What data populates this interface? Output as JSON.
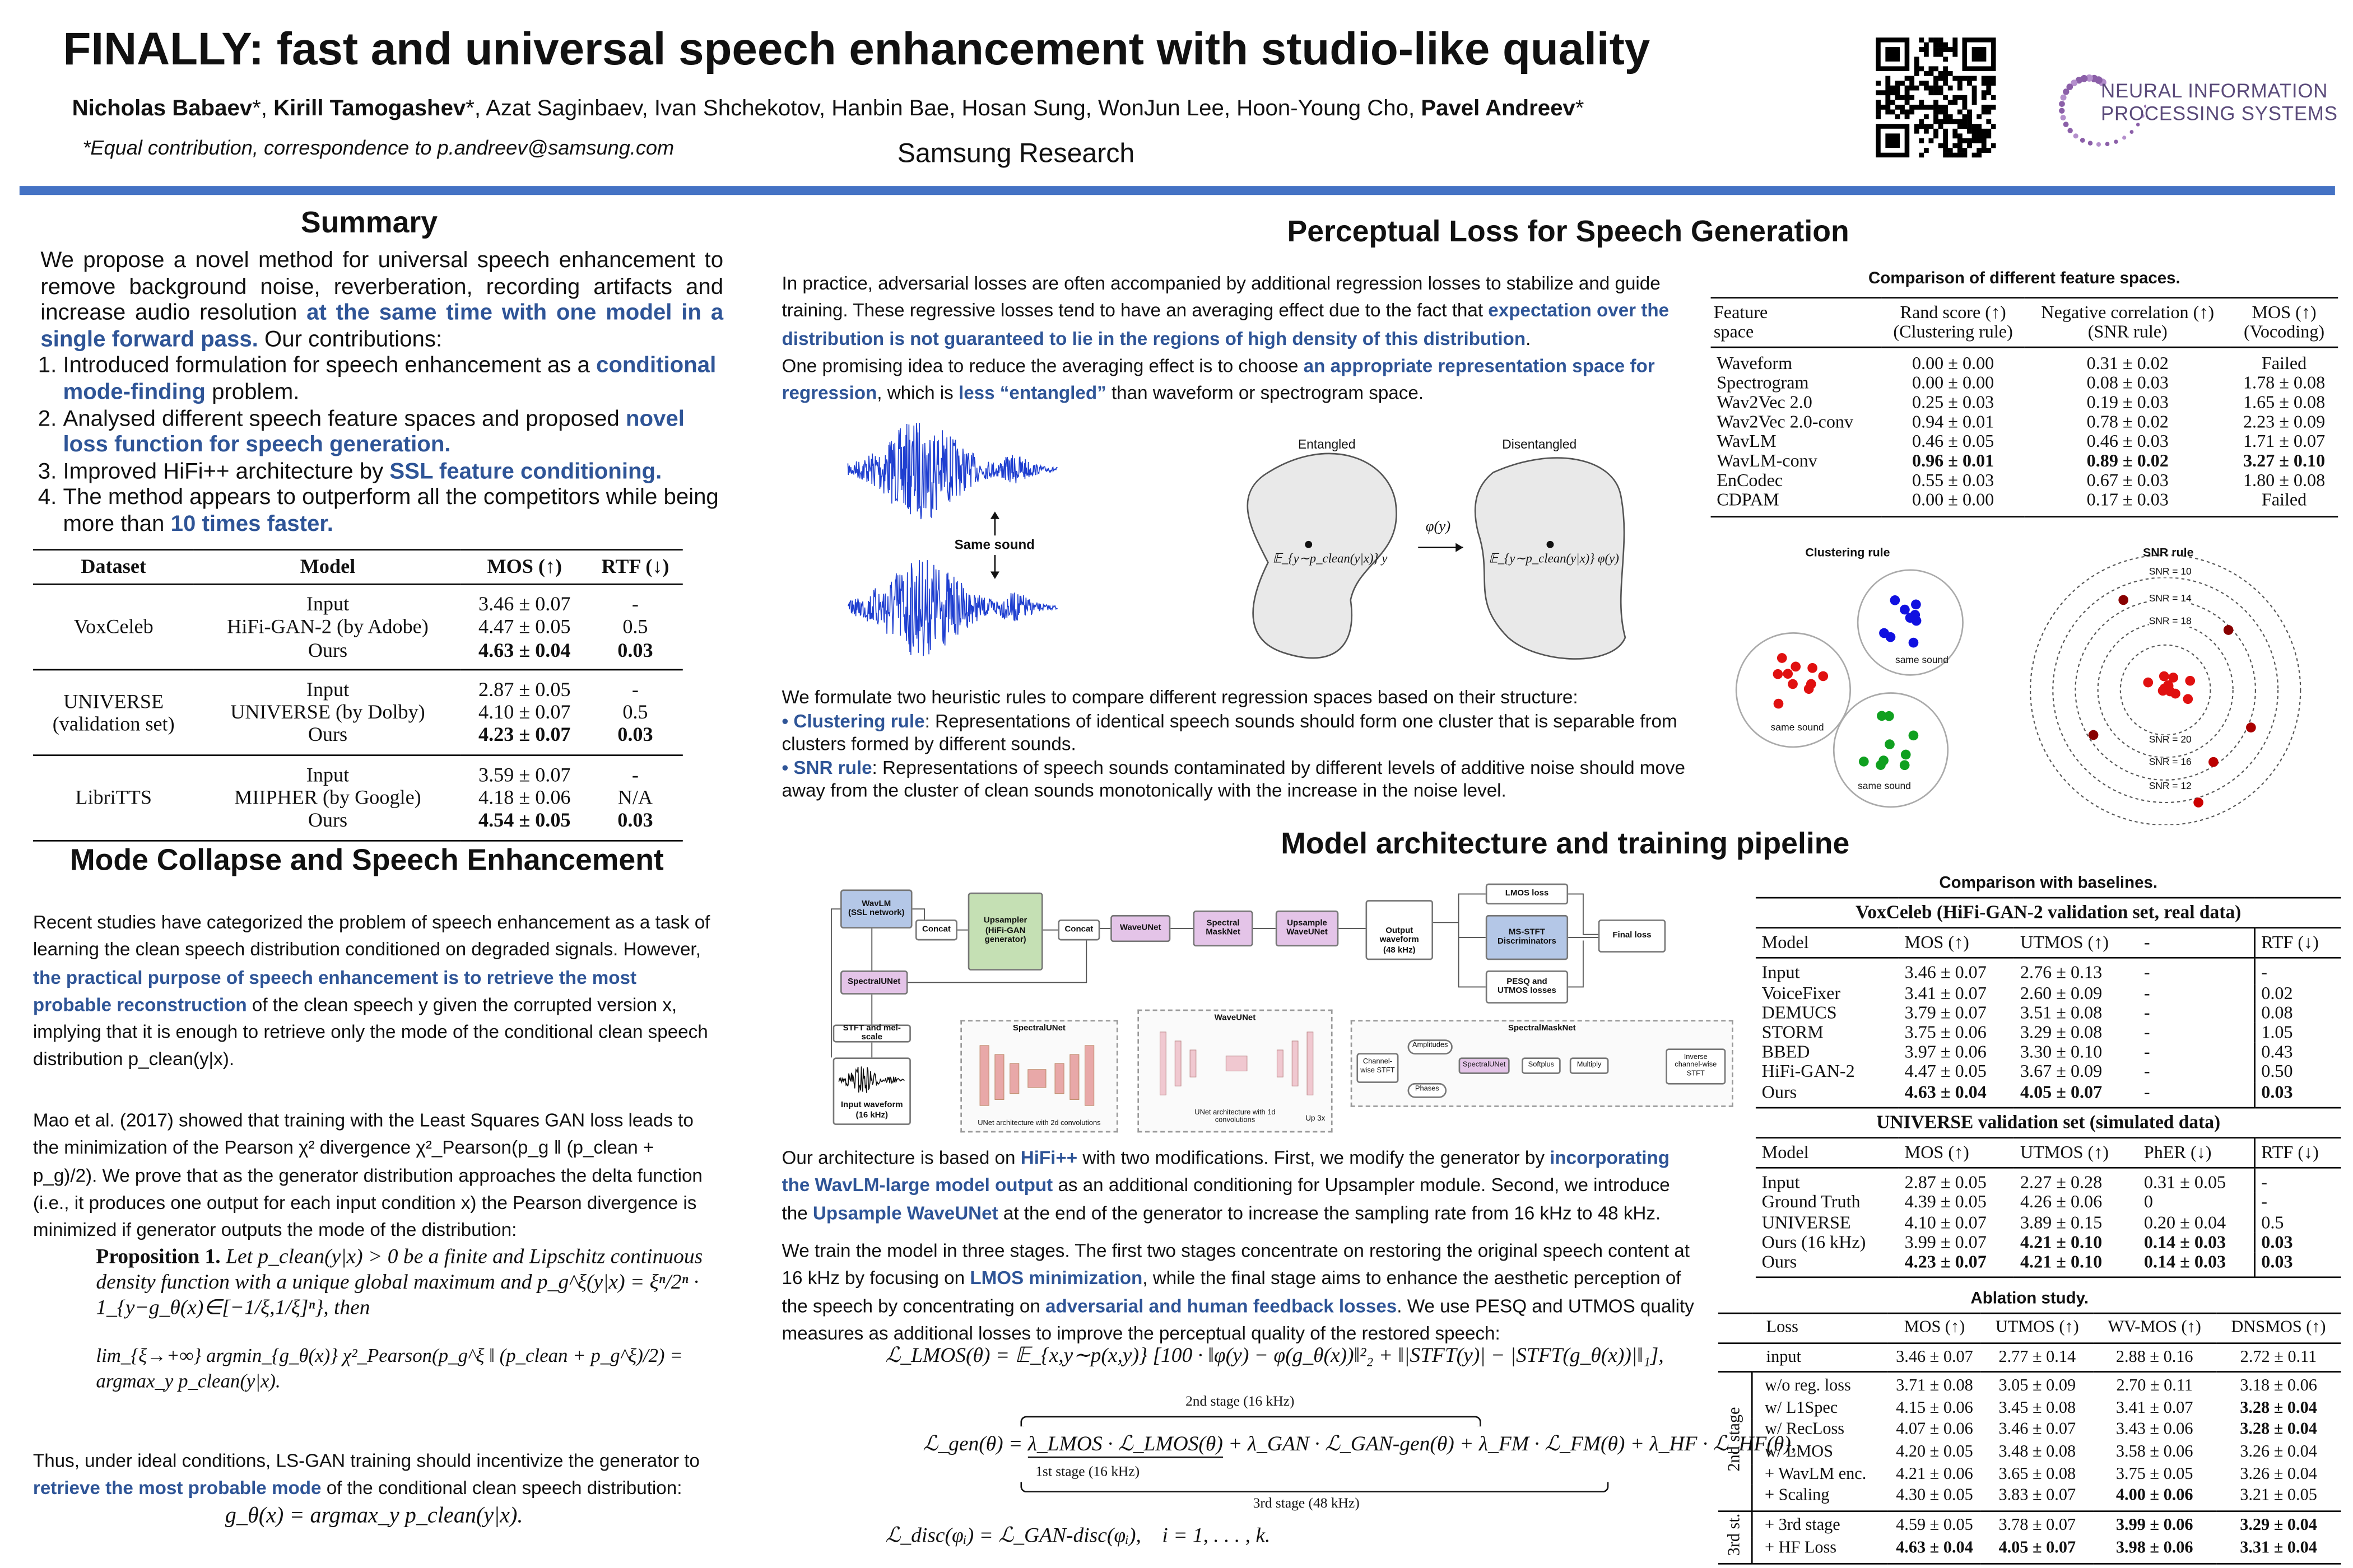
{
  "header": {
    "title": "FINALLY: fast and universal speech enhancement with studio-like quality",
    "authors": [
      {
        "emph": "Nicholas Babaev"
      },
      "*, ",
      {
        "emph": "Kirill Tamogashev"
      },
      "*, Azat Saginbaev, Ivan Shchekotov, Hanbin Bae, Hosan Sung, WonJun Lee, Hoon-Young Cho, ",
      {
        "emph": "Pavel Andreev"
      },
      "*"
    ],
    "note": "*Equal contribution, correspondence to p.andreev@samsung.com",
    "affiliation": "Samsung Research",
    "logo_text": [
      "NEURAL INFORMATION",
      "PROCESSING SYSTEMS"
    ]
  },
  "summary": {
    "title": "Summary",
    "intro": [
      "We propose a novel method for universal speech enhancement to remove background noise, reverberation, recording artifacts and increase audio resolution ",
      {
        "emph": "at the same time with one model in a single forward pass."
      },
      "  Our contributions:"
    ],
    "contributions": [
      [
        "Introduced formulation for speech enhancement as a ",
        {
          "emph": "conditional mode-finding"
        },
        " problem."
      ],
      [
        "Analysed different speech feature spaces and proposed ",
        {
          "emph": "novel loss function for speech generation."
        }
      ],
      [
        "Improved HiFi++ architecture by ",
        {
          "emph": "SSL feature conditioning."
        }
      ],
      [
        "The method appears to outperform all the competitors while being more than ",
        {
          "emph": "10 times faster."
        }
      ]
    ],
    "table": {
      "header": [
        "Dataset",
        "Model",
        "MOS (↑)",
        "RTF (↓)"
      ],
      "groups": [
        {
          "dataset": "VoxCeleb",
          "rows": [
            [
              "Input",
              "3.46 ± 0.07",
              "-"
            ],
            [
              "HiFi-GAN-2 (by Adobe)",
              "4.47 ± 0.05",
              "0.5"
            ],
            [
              "Ours",
              {
                "bold": "4.63 ± 0.04"
              },
              {
                "bold": "0.03"
              }
            ]
          ]
        },
        {
          "dataset": "UNIVERSE\n(validation set)",
          "rows": [
            [
              "Input",
              "2.87 ± 0.05",
              "-"
            ],
            [
              "UNIVERSE (by Dolby)",
              "4.10 ± 0.07",
              "0.5"
            ],
            [
              "Ours",
              {
                "bold": "4.23 ± 0.07"
              },
              {
                "bold": "0.03"
              }
            ]
          ]
        },
        {
          "dataset": "LibriTTS",
          "rows": [
            [
              "Input",
              "3.59 ± 0.07",
              "-"
            ],
            [
              "MIIPHER (by Google)",
              "4.18 ± 0.06",
              "N/A"
            ],
            [
              "Ours",
              {
                "bold": "4.54 ± 0.05"
              },
              {
                "bold": "0.03"
              }
            ]
          ]
        }
      ]
    }
  },
  "mode_collapse": {
    "title": "Mode Collapse and Speech Enhancement",
    "p1": [
      "Recent studies have categorized the problem of speech enhancement as a task of learning the clean speech distribution conditioned on degraded signals. However, ",
      {
        "emph": "the practical purpose of speech enhancement is to retrieve the most probable reconstruction"
      },
      " of the clean speech y given the corrupted version x, implying that it is enough to retrieve only the mode of the conditional clean speech distribution p_clean(y|x)."
    ],
    "p2": [
      "Mao et al. (2017) showed that training with the Least Squares GAN loss leads to the minimization of the Pearson χ² divergence χ²_Pearson(p_g ‖ (p_clean + p_g)/2). We prove that as the generator distribution approaches the delta function (i.e., it produces one output for each input condition x) the Pearson divergence is minimized if generator outputs the mode of the distribution:"
    ],
    "proposition": {
      "label": "Proposition 1.",
      "text": "Let p_clean(y|x) > 0 be a finite and Lipschitz continuous density function with a unique global maximum and p_g^ξ(y|x) = ξⁿ/2ⁿ · 1_{y−g_θ(x)∈[−1/ξ,1/ξ]ⁿ}, then",
      "formula": "lim_{ξ→+∞} argmin_{g_θ(x)} χ²_Pearson(p_g^ξ ‖ (p_clean + p_g^ξ)/2) = argmax_y p_clean(y|x)."
    },
    "p3": [
      "Thus, under ideal conditions, LS-GAN training should incentivize the generator to ",
      {
        "emph": "retrieve the most probable mode"
      },
      " of the conditional clean speech distribution:"
    ],
    "formula": "g_θ(x) = argmax_y p_clean(y|x)."
  },
  "perceptual": {
    "title": "Perceptual Loss for Speech Generation",
    "p1": [
      "In practice, adversarial losses are often accompanied by additional regression losses to stabilize and guide training. These regressive losses tend to have an averaging effect due to the fact that ",
      {
        "emph": "expectation over the distribution is not guaranteed to lie in the regions of high density of this distribution"
      },
      "."
    ],
    "p2": [
      "One promising idea to reduce the averaging effect is to choose ",
      {
        "emph": "an appropriate representation space for regression"
      },
      ", which is ",
      {
        "emph": "less “entangled”"
      },
      " than waveform or spectrogram space."
    ],
    "figure": {
      "same_sound": "Same sound",
      "entangled": "Entangled",
      "disentangled": "Disentangled",
      "phi": "φ(y)",
      "left_expectation": "𝔼_{y∼p_clean(y|x)} y",
      "right_expectation": "𝔼_{y∼p_clean(y|x)} φ(y)"
    },
    "p3": [
      "We formulate two heuristic rules to compare different regression spaces based on their structure:"
    ],
    "rule1": [
      {
        "emph": "• Clustering rule"
      },
      ": Representations of identical speech sounds should form one cluster that is separable from clusters formed by different sounds."
    ],
    "rule2": [
      {
        "emph": "• SNR rule"
      },
      ": Representations of speech sounds contaminated by different levels of additive noise should move away from the cluster of clean sounds monotonically with the increase in the noise level."
    ],
    "feature_table": {
      "title": "Comparison of different feature spaces.",
      "header": [
        "Feature\nspace",
        "Rand score (↑)\n(Clustering rule)",
        "Negative correlation (↑)\n(SNR rule)",
        "MOS (↑)\n(Vocoding)"
      ],
      "rows": [
        [
          "Waveform",
          "0.00 ± 0.00",
          "0.31 ± 0.02",
          "Failed"
        ],
        [
          "Spectrogram",
          "0.00 ± 0.00",
          "0.08 ± 0.03",
          "1.78 ± 0.08"
        ],
        [
          "Wav2Vec 2.0",
          "0.25 ± 0.03",
          "0.19 ± 0.03",
          "1.65 ± 0.08"
        ],
        [
          "Wav2Vec 2.0-conv",
          "0.94 ± 0.01",
          "0.78 ± 0.02",
          "2.23 ± 0.09"
        ],
        [
          "WavLM",
          "0.46 ± 0.05",
          "0.46 ± 0.03",
          "1.71 ± 0.07"
        ],
        [
          "WavLM-conv",
          {
            "bold": "0.96 ± 0.01"
          },
          {
            "bold": "0.89 ± 0.02"
          },
          {
            "bold": "3.27 ± 0.10"
          }
        ],
        [
          "EnCodec",
          "0.55 ± 0.03",
          "0.67 ± 0.03",
          "1.80 ± 0.08"
        ],
        [
          "CDPAM",
          "0.00 ± 0.00",
          "0.17 ± 0.03",
          "Failed"
        ]
      ]
    },
    "clustering": {
      "title": "Clustering rule",
      "labels": [
        "same sound",
        "same sound",
        "same sound"
      ]
    },
    "snr": {
      "title": "SNR rule",
      "labels": [
        "SNR = 10",
        "SNR = 14",
        "SNR = 18",
        "SNR = 20",
        "SNR = 16",
        "SNR = 12"
      ]
    }
  },
  "architecture": {
    "title": "Model architecture and training pipeline",
    "diagram": {
      "wavlm": "WavLM\n(SSL network)",
      "concat1": "Concat",
      "upsampler": "Upsampler\n(HiFi-GAN\ngenerator)",
      "concat2": "Concat",
      "waveunet": "WaveUNet",
      "spectral_masknet": "Spectral\nMaskNet",
      "upsample_waveunet": "Upsample\nWaveUNet",
      "output": "Output waveform\n(48 kHz)",
      "lmos_loss": "LMOS loss",
      "discriminators": "MS-STFT\nDiscriminators",
      "pesq_utmos": "PESQ and\nUTMOS losses",
      "final_loss": "Final loss",
      "spectralunet": "SpectralUNet",
      "stft": "STFT and mel-scale",
      "input": "Input waveform\n(16 kHz)",
      "panel_spectralunet": "SpectralUNet",
      "panel_spectralunet_caption": "UNet architecture with 2d convolutions",
      "panel_waveunet": "WaveUNet",
      "panel_waveunet_caption": "UNet architecture with 1d\nconvolutions",
      "up3x": "Up 3x",
      "panel_masknet": "SpectralMaskNet",
      "masknet_parts": [
        "Channel-\nwise STFT",
        "Amplitudes",
        "SpectralUNet",
        "Phases",
        "Softplus",
        "Multiply",
        "Inverse\nchannel-wise\nSTFT"
      ]
    },
    "p1": [
      "Our architecture is based on ",
      {
        "emph": "HiFi++"
      },
      " with two modifications. First, we modify the generator by ",
      {
        "emph": "incorporating the WavLM-large model output"
      },
      " as an additional conditioning for Upsampler module. Second, we introduce the ",
      {
        "emph": "Upsample WaveUNet"
      },
      " at the end of the generator to increase the sampling rate from 16 kHz to 48 kHz."
    ],
    "p2": [
      "We train the model in three stages. The first two stages concentrate on restoring the original speech content at 16 kHz by focusing on ",
      {
        "emph": "LMOS minimization"
      },
      ", while the final stage aims to enhance the aesthetic perception of the speech by concentrating on ",
      {
        "emph": "adversarial and human feedback losses"
      },
      ". We use PESQ and UTMOS quality measures as additional losses to improve the perceptual quality of the restored speech:"
    ],
    "lmos_formula": "ℒ_LMOS(θ) = 𝔼_{x,y∼p(x,y)} [100 · ‖φ(y) − φ(g_θ(x))‖²₂ + ‖|STFT(y)| − |STFT(g_θ(x))|‖₁],",
    "gen_formula": [
      "ℒ_gen(θ) = ",
      "λ_LMOS · ℒ_LMOS(θ)",
      " + λ_GAN · ℒ_GAN-gen(θ) + λ_FM · ℒ_FM(θ)",
      " + λ_HF · ℒ_HF(θ),"
    ],
    "stage2": "2nd stage (16 kHz)",
    "stage1": "1st stage (16 kHz)",
    "stage3": "3rd stage (48 kHz)",
    "disc_formula": "ℒ_disc(φᵢ) = ℒ_GAN-disc(φᵢ),    i = 1, . . . , k."
  },
  "baselines": {
    "title": "Comparison with baselines.",
    "sections": [
      {
        "title": "VoxCeleb (HiFi-GAN-2 validation set, real data)",
        "header": [
          "Model",
          "MOS (↑)",
          "UTMOS (↑)",
          "-",
          "RTF (↓)"
        ],
        "rows": [
          [
            "Input",
            "3.46 ± 0.07",
            "2.76 ± 0.13",
            "-",
            "-"
          ],
          [
            "VoiceFixer",
            "3.41 ± 0.07",
            "2.60 ± 0.09",
            "-",
            "0.02"
          ],
          [
            "DEMUCS",
            "3.79 ± 0.07",
            "3.51 ± 0.08",
            "-",
            "0.08"
          ],
          [
            "STORM",
            "3.75 ± 0.06",
            "3.29 ± 0.08",
            "-",
            "1.05"
          ],
          [
            "BBED",
            "3.97 ± 0.06",
            "3.30 ± 0.10",
            "-",
            "0.43"
          ],
          [
            "HiFi-GAN-2",
            "4.47 ± 0.05",
            "3.67 ± 0.09",
            "-",
            "0.50"
          ],
          [
            "Ours",
            {
              "bold": "4.63 ± 0.04"
            },
            {
              "bold": "4.05 ± 0.07"
            },
            "-",
            {
              "bold": "0.03"
            }
          ]
        ]
      },
      {
        "title": "UNIVERSE validation set (simulated data)",
        "header": [
          "Model",
          "MOS (↑)",
          "UTMOS (↑)",
          "PhER (↓)",
          "RTF (↓)"
        ],
        "rows": [
          [
            "Input",
            "2.87 ± 0.05",
            "2.27 ± 0.28",
            "0.31 ± 0.05",
            "-"
          ],
          [
            "Ground Truth",
            "4.39 ± 0.05",
            "4.26 ± 0.06",
            "0",
            "-"
          ],
          [
            "UNIVERSE",
            "4.10 ± 0.07",
            "3.89 ± 0.15",
            "0.20 ± 0.04",
            "0.5"
          ],
          [
            "Ours (16 kHz)",
            "3.99 ± 0.07",
            {
              "bold": "4.21 ± 0.10"
            },
            {
              "bold": "0.14 ± 0.03"
            },
            {
              "bold": "0.03"
            }
          ],
          [
            "Ours",
            {
              "bold": "4.23 ± 0.07"
            },
            {
              "bold": "4.21 ± 0.10"
            },
            {
              "bold": "0.14 ± 0.03"
            },
            {
              "bold": "0.03"
            }
          ]
        ]
      }
    ]
  },
  "ablation": {
    "title": "Ablation study.",
    "header": [
      "Loss",
      "MOS (↑)",
      "UTMOS (↑)",
      "WV-MOS (↑)",
      "DNSMOS (↑)"
    ],
    "top_rows": [
      [
        "input",
        "3.46 ± 0.07",
        "2.77 ± 0.14",
        "2.88 ± 0.16",
        "2.72 ± 0.11"
      ]
    ],
    "groups": [
      {
        "label": "2nd stage",
        "rows": [
          [
            "w/o reg. loss",
            "3.71 ± 0.08",
            "3.05 ± 0.09",
            "2.70 ± 0.11",
            "3.18 ± 0.06"
          ],
          [
            "w/ L1Spec",
            "4.15 ± 0.06",
            "3.45 ± 0.08",
            "3.41 ± 0.07",
            {
              "bold": "3.28 ± 0.04"
            }
          ],
          [
            "w/ RecLoss",
            "4.07 ± 0.06",
            "3.46 ± 0.07",
            "3.43 ± 0.06",
            {
              "bold": "3.28 ± 0.04"
            }
          ],
          [
            "w/ LMOS",
            "4.20 ± 0.05",
            "3.48 ± 0.08",
            "3.58 ± 0.06",
            "3.26 ± 0.04"
          ],
          [
            "+ WavLM enc.",
            "4.21 ± 0.06",
            "3.65 ± 0.08",
            "3.75 ± 0.05",
            "3.26 ± 0.04"
          ],
          [
            "+ Scaling",
            "4.30 ± 0.05",
            "3.83 ± 0.07",
            {
              "bold": "4.00 ± 0.06"
            },
            "3.21 ± 0.05"
          ]
        ]
      },
      {
        "label": "3rd st.",
        "rows": [
          [
            "+ 3rd stage",
            "4.59 ± 0.05",
            "3.78 ± 0.07",
            {
              "bold": "3.99 ± 0.06"
            },
            {
              "bold": "3.29 ± 0.04"
            }
          ],
          [
            "+ HF Loss",
            {
              "bold": "4.63 ± 0.04"
            },
            {
              "bold": "4.05 ± 0.07"
            },
            {
              "bold": "3.98 ± 0.06"
            },
            {
              "bold": "3.31 ± 0.04"
            }
          ]
        ]
      }
    ]
  }
}
